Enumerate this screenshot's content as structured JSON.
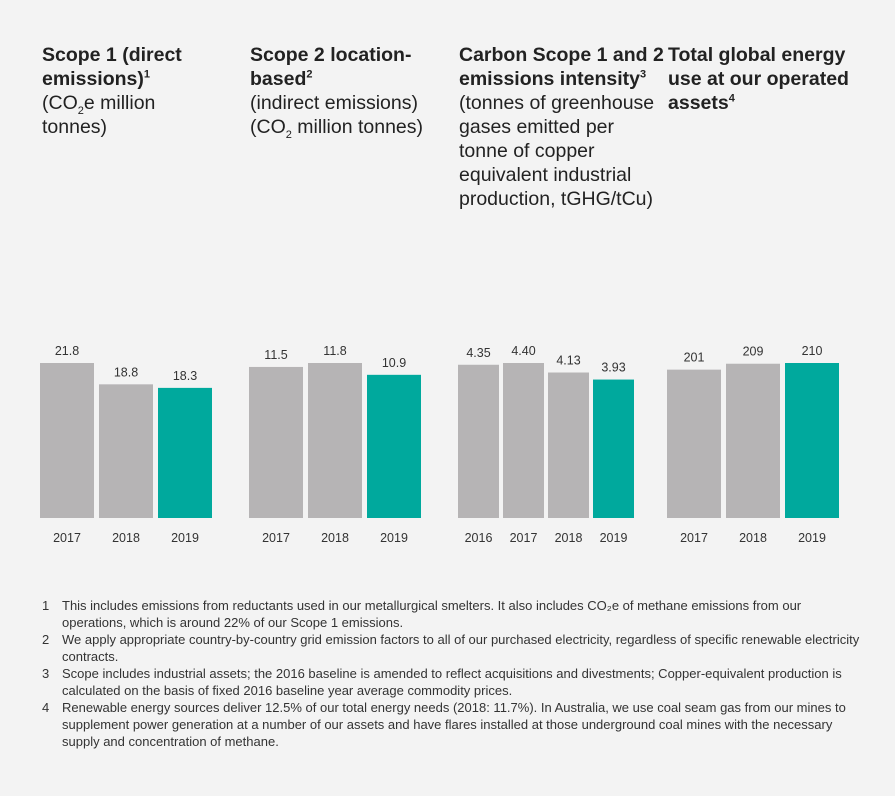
{
  "columns": [
    {
      "title_bold": "Scope 1 (direct emissions)",
      "title_sup": "1",
      "title_reg_a": "(CO",
      "title_sub": "2",
      "title_reg_b": "e million tonnes)"
    },
    {
      "title_bold": "Scope 2 location-based",
      "title_sup": "2",
      "title_reg_a": "(indirect emissions) (CO",
      "title_sub": "2",
      "title_reg_b": " million tonnes)"
    },
    {
      "title_bold": "Carbon Scope 1 and 2 emissions intensity",
      "title_sup": "3",
      "title_reg_a": "(tonnes of greenhouse gases emitted per tonne of copper equivalent industrial production, tGHG/tCu)",
      "title_sub": "",
      "title_reg_b": ""
    },
    {
      "title_bold": "Total global energy use at our operated assets",
      "title_sup": "4",
      "title_reg_a": "",
      "title_sub": "",
      "title_reg_b": ""
    }
  ],
  "chart_data": [
    {
      "type": "bar",
      "categories": [
        "2017",
        "2018",
        "2019"
      ],
      "values": [
        21.8,
        18.8,
        18.3
      ],
      "labels": [
        "21.8",
        "18.8",
        "18.3"
      ],
      "ylim": [
        0,
        21.8
      ],
      "highlight_last": true
    },
    {
      "type": "bar",
      "categories": [
        "2017",
        "2018",
        "2019"
      ],
      "values": [
        11.5,
        11.8,
        10.9
      ],
      "labels": [
        "11.5",
        "11.8",
        "10.9"
      ],
      "ylim": [
        0,
        11.8
      ],
      "highlight_last": true
    },
    {
      "type": "bar",
      "categories": [
        "2016",
        "2017",
        "2018",
        "2019"
      ],
      "values": [
        4.35,
        4.4,
        4.13,
        3.93
      ],
      "labels": [
        "4.35",
        "4.40",
        "4.13",
        "3.93"
      ],
      "ylim": [
        0,
        4.4
      ],
      "highlight_last": true
    },
    {
      "type": "bar",
      "categories": [
        "2017",
        "2018",
        "2019"
      ],
      "values": [
        201,
        209,
        210
      ],
      "labels": [
        "201",
        "209",
        "210"
      ],
      "ylim": [
        0,
        210
      ],
      "highlight_last": true
    }
  ],
  "colors": {
    "bar": "#b6b4b5",
    "highlight": "#00a99d",
    "background": "#f3f3f3"
  },
  "notes": [
    {
      "num": "1",
      "text": "This includes emissions from reductants used in our metallurgical smelters. It also includes CO₂e of methane emissions from our operations, which is around 22% of our Scope 1 emissions."
    },
    {
      "num": "2",
      "text": "We apply appropriate country-by-country grid emission factors to all of our purchased electricity, regardless of specific renewable electricity contracts."
    },
    {
      "num": "3",
      "text": "Scope includes industrial assets; the 2016 baseline is amended to reflect acquisitions and divestments; Copper-equivalent production is calculated on the basis of fixed 2016 baseline year average commodity prices."
    },
    {
      "num": "4",
      "text": "Renewable energy sources deliver 12.5% of our total energy needs (2018: 11.7%). In Australia, we use coal seam gas from our mines to supplement power generation at a number of our assets and have flares installed at those underground coal mines with the necessary supply and concentration of methane."
    }
  ]
}
